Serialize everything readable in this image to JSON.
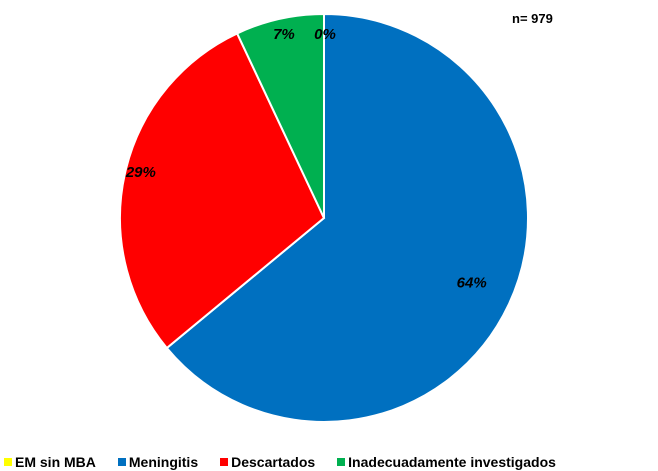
{
  "chart_data": {
    "type": "pie",
    "n_label": "n= 979",
    "slices": [
      {
        "name": "EM sin MBA",
        "value": 0,
        "label": "0%",
        "color": "#FFFF00"
      },
      {
        "name": "Meningitis",
        "value": 64,
        "label": "64%",
        "color": "#0070C0"
      },
      {
        "name": "Descartados",
        "value": 29,
        "label": "29%",
        "color": "#FF0000"
      },
      {
        "name": "Inadecuadamente investigados",
        "value": 7,
        "label": "7%",
        "color": "#00B050"
      }
    ],
    "legend_position": "bottom"
  }
}
